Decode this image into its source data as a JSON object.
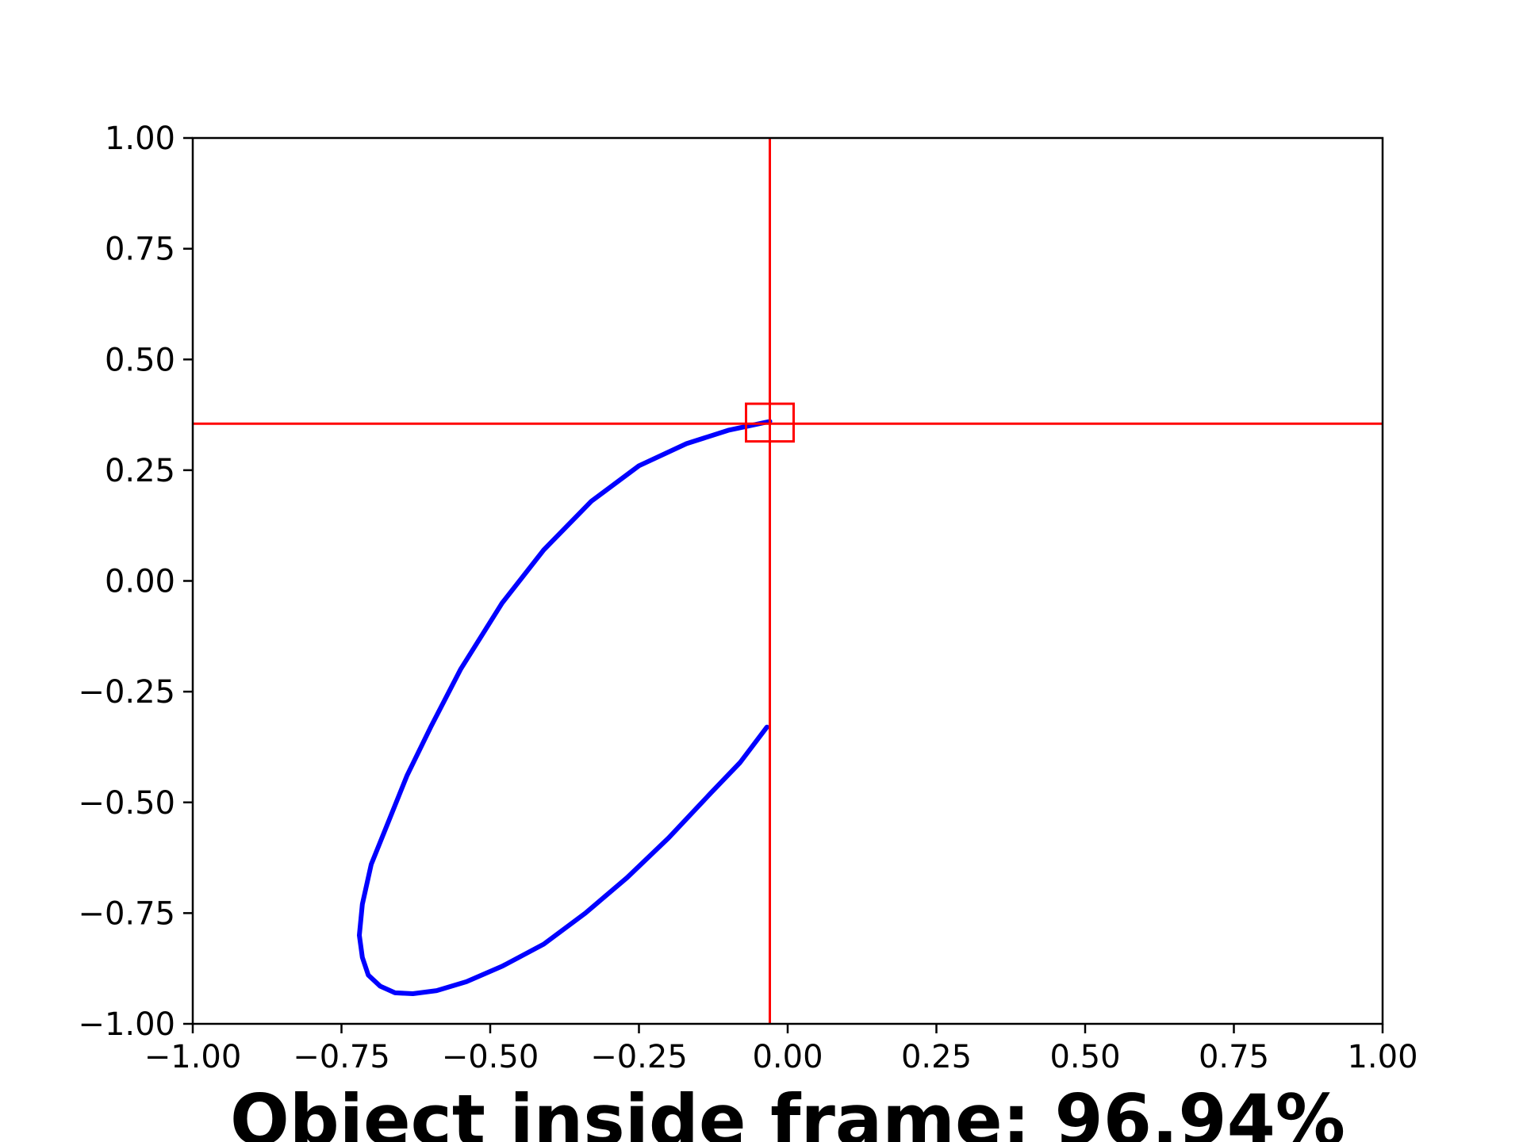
{
  "chart_data": {
    "type": "line",
    "title": "",
    "xlabel": "Object inside frame: 96.94%",
    "ylabel": "",
    "xlim": [
      -1.0,
      1.0
    ],
    "ylim": [
      -1.0,
      1.0
    ],
    "x_ticks": [
      "−1.00",
      "−0.75",
      "−0.50",
      "−0.25",
      "0.00",
      "0.25",
      "0.50",
      "0.75",
      "1.00"
    ],
    "y_ticks": [
      "1.00",
      "0.75",
      "0.50",
      "0.25",
      "0.00",
      "−0.25",
      "−0.50",
      "−0.75",
      "−1.00"
    ],
    "x_tick_values": [
      -1.0,
      -0.75,
      -0.5,
      -0.25,
      0.0,
      0.25,
      0.5,
      0.75,
      1.0
    ],
    "y_tick_values": [
      1.0,
      0.75,
      0.5,
      0.25,
      0.0,
      -0.25,
      -0.5,
      -0.75,
      -1.0
    ],
    "grid": false,
    "series": [
      {
        "color": "#0000ff",
        "x": [
          -0.03,
          -0.1,
          -0.17,
          -0.25,
          -0.33,
          -0.41,
          -0.48,
          -0.55,
          -0.6,
          -0.64,
          -0.67,
          -0.7,
          -0.715,
          -0.72,
          -0.715,
          -0.705,
          -0.685,
          -0.66,
          -0.63,
          -0.59,
          -0.54,
          -0.48,
          -0.41,
          -0.34,
          -0.27,
          -0.2,
          -0.13,
          -0.08,
          -0.035
        ],
        "y": [
          0.36,
          0.34,
          0.31,
          0.26,
          0.18,
          0.07,
          -0.05,
          -0.2,
          -0.33,
          -0.44,
          -0.54,
          -0.64,
          -0.73,
          -0.8,
          -0.85,
          -0.89,
          -0.915,
          -0.93,
          -0.932,
          -0.925,
          -0.905,
          -0.87,
          -0.82,
          -0.75,
          -0.67,
          -0.58,
          -0.48,
          -0.41,
          -0.33
        ]
      }
    ],
    "crosshair": {
      "x": -0.03,
      "y": 0.355,
      "color": "#ff0000"
    },
    "marker_box": {
      "x_range": [
        -0.07,
        0.01
      ],
      "y_range": [
        0.315,
        0.4
      ],
      "color": "#ff0000"
    }
  }
}
